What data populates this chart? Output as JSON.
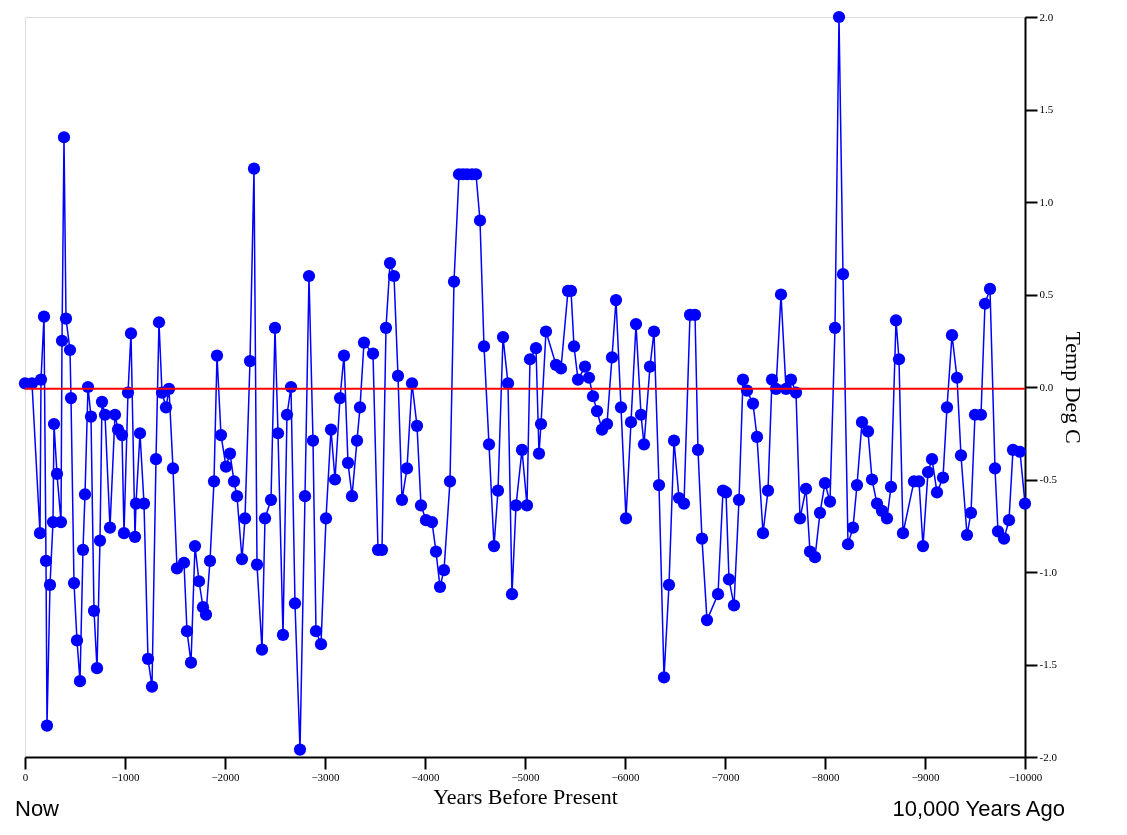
{
  "chart_data": {
    "type": "line",
    "xlabel": "Years Before Present",
    "ylabel": "Temp Deg C",
    "xlim": [
      0,
      -10000
    ],
    "xticks": [
      0,
      -1000,
      -2000,
      -3000,
      -4000,
      -5000,
      -6000,
      -7000,
      -8000,
      -9000,
      -10000
    ],
    "ylim": [
      -2,
      2
    ],
    "yticks": [
      {
        "value": 2,
        "label": "2.0"
      },
      {
        "value": 1.5,
        "label": "1.5"
      },
      {
        "value": 1,
        "label": "1.0"
      },
      {
        "value": 0.5,
        "label": "0.5"
      },
      {
        "value": 0,
        "label": "0.0"
      },
      {
        "value": -0.5,
        "label": "-0.5"
      },
      {
        "value": -1,
        "label": "-1.0"
      },
      {
        "value": -1.5,
        "label": "-1.5"
      },
      {
        "value": -2,
        "label": "-2.0"
      }
    ],
    "marker": "circle",
    "line_style": "solid",
    "ref_lines": [
      {
        "axis": "y",
        "value": -0.01,
        "color": "#ff0000"
      }
    ],
    "annotations": [
      "Now",
      "10,000 Years Ago"
    ],
    "x": [
      0,
      -70,
      -150,
      -160,
      -190,
      -210,
      -220,
      -250,
      -280,
      -290,
      -320,
      -360,
      -370,
      -390,
      -410,
      -450,
      -460,
      -490,
      -520,
      -550,
      -580,
      -600,
      -630,
      -660,
      -690,
      -720,
      -750,
      -770,
      -800,
      -850,
      -900,
      -930,
      -970,
      -990,
      -1030,
      -1060,
      -1100,
      -1110,
      -1150,
      -1190,
      -1230,
      -1270,
      -1310,
      -1340,
      -1370,
      -1410,
      -1440,
      -1480,
      -1520,
      -1590,
      -1620,
      -1660,
      -1700,
      -1740,
      -1780,
      -1810,
      -1850,
      -1890,
      -1920,
      -1960,
      -2010,
      -2050,
      -2090,
      -2120,
      -2170,
      -2200,
      -2250,
      -2290,
      -2320,
      -2370,
      -2400,
      -2460,
      -2500,
      -2530,
      -2580,
      -2620,
      -2660,
      -2700,
      -2750,
      -2800,
      -2840,
      -2880,
      -2910,
      -2960,
      -3010,
      -3060,
      -3100,
      -3150,
      -3190,
      -3230,
      -3270,
      -3320,
      -3350,
      -3390,
      -3480,
      -3530,
      -3570,
      -3610,
      -3650,
      -3690,
      -3730,
      -3770,
      -3820,
      -3870,
      -3920,
      -3960,
      -4010,
      -4070,
      -4110,
      -4150,
      -4190,
      -4250,
      -4290,
      -4340,
      -4380,
      -4420,
      -4470,
      -4510,
      -4550,
      -4590,
      -4640,
      -4690,
      -4730,
      -4780,
      -4830,
      -4870,
      -4910,
      -4970,
      -5020,
      -5050,
      -5110,
      -5140,
      -5160,
      -5210,
      -5310,
      -5360,
      -5430,
      -5460,
      -5490,
      -5530,
      -5600,
      -5640,
      -5680,
      -5720,
      -5770,
      -5820,
      -5870,
      -5910,
      -5960,
      -6010,
      -6060,
      -6110,
      -6160,
      -6190,
      -6250,
      -6290,
      -6340,
      -6390,
      -6440,
      -6490,
      -6540,
      -6590,
      -6650,
      -6700,
      -6730,
      -6770,
      -6820,
      -6930,
      -6980,
      -7010,
      -7040,
      -7090,
      -7140,
      -7180,
      -7220,
      -7280,
      -7320,
      -7380,
      -7430,
      -7470,
      -7510,
      -7560,
      -7610,
      -7660,
      -7710,
      -7750,
      -7810,
      -7850,
      -7900,
      -7950,
      -8000,
      -8050,
      -8100,
      -8140,
      -8180,
      -8230,
      -8280,
      -8320,
      -8370,
      -8430,
      -8470,
      -8520,
      -8570,
      -8620,
      -8660,
      -8710,
      -8740,
      -8780,
      -8890,
      -8940,
      -8980,
      -9030,
      -9070,
      -9120,
      -9180,
      -9220,
      -9270,
      -9320,
      -9360,
      -9420,
      -9460,
      -9500,
      -9560,
      -9600,
      -9650,
      -9700,
      -9730,
      -9790,
      -9840,
      -9880,
      -9950,
      -10000
    ],
    "series": [
      {
        "color": "#0000ff",
        "values": [
          0.02,
          0.02,
          -0.79,
          0.04,
          0.38,
          -0.94,
          -1.83,
          -1.07,
          -0.73,
          -0.2,
          -0.47,
          -0.73,
          0.25,
          1.35,
          0.37,
          0.2,
          -0.06,
          -1.06,
          -1.37,
          -1.59,
          -0.88,
          -0.58,
          0.0,
          -0.16,
          -1.21,
          -1.52,
          -0.83,
          -0.08,
          -0.15,
          -0.76,
          -0.15,
          -0.23,
          -0.26,
          -0.79,
          -0.03,
          0.29,
          -0.81,
          -0.63,
          -0.25,
          -0.63,
          -1.47,
          -1.62,
          -0.39,
          0.35,
          -0.03,
          -0.11,
          -0.01,
          -0.44,
          -0.98,
          -0.95,
          -1.32,
          -1.49,
          -0.86,
          -1.05,
          -1.19,
          -1.23,
          -0.94,
          -0.51,
          0.17,
          -0.26,
          -0.43,
          -0.36,
          -0.51,
          -0.59,
          -0.93,
          -0.71,
          0.14,
          1.18,
          -0.96,
          -1.42,
          -0.71,
          -0.61,
          0.32,
          -0.25,
          -1.34,
          -0.15,
          0.0,
          -1.17,
          -1.96,
          -0.59,
          0.6,
          -0.29,
          -1.32,
          -1.39,
          -0.71,
          -0.23,
          -0.5,
          -0.06,
          0.17,
          -0.41,
          -0.59,
          -0.29,
          -0.11,
          0.24,
          0.18,
          -0.88,
          -0.88,
          0.32,
          0.67,
          0.6,
          0.06,
          -0.61,
          -0.44,
          0.02,
          -0.21,
          -0.64,
          -0.72,
          -0.73,
          -0.89,
          -1.08,
          -0.99,
          -0.51,
          0.57,
          1.15,
          1.15,
          1.15,
          1.15,
          1.15,
          0.9,
          0.22,
          -0.31,
          -0.86,
          -0.56,
          0.27,
          0.02,
          -1.12,
          -0.64,
          -0.34,
          -0.64,
          0.15,
          0.21,
          -0.36,
          -0.2,
          0.3,
          0.12,
          0.1,
          0.52,
          0.52,
          0.22,
          0.04,
          0.11,
          0.05,
          -0.05,
          -0.13,
          -0.23,
          -0.2,
          0.16,
          0.47,
          -0.11,
          -0.71,
          -0.19,
          0.34,
          -0.15,
          -0.31,
          0.11,
          0.3,
          -0.53,
          -1.57,
          -1.07,
          -0.29,
          -0.6,
          -0.63,
          0.39,
          0.39,
          -0.34,
          -0.82,
          -1.26,
          -1.12,
          -0.56,
          -0.57,
          -1.04,
          -1.18,
          -0.61,
          0.04,
          -0.02,
          -0.09,
          -0.27,
          -0.79,
          -0.56,
          0.04,
          -0.01,
          0.5,
          -0.01,
          0.04,
          -0.03,
          -0.71,
          -0.55,
          -0.89,
          -0.92,
          -0.68,
          -0.52,
          -0.62,
          0.32,
          2.0,
          0.61,
          -0.85,
          -0.76,
          -0.53,
          -0.19,
          -0.24,
          -0.5,
          -0.63,
          -0.67,
          -0.71,
          -0.54,
          0.36,
          0.15,
          -0.79,
          -0.51,
          -0.51,
          -0.86,
          -0.46,
          -0.39,
          -0.57,
          -0.49,
          -0.11,
          0.28,
          0.05,
          -0.37,
          -0.8,
          -0.68,
          -0.15,
          -0.15,
          0.45,
          0.53,
          -0.44,
          -0.78,
          -0.82,
          -0.72,
          -0.34,
          -0.35,
          -0.63
        ]
      }
    ]
  }
}
